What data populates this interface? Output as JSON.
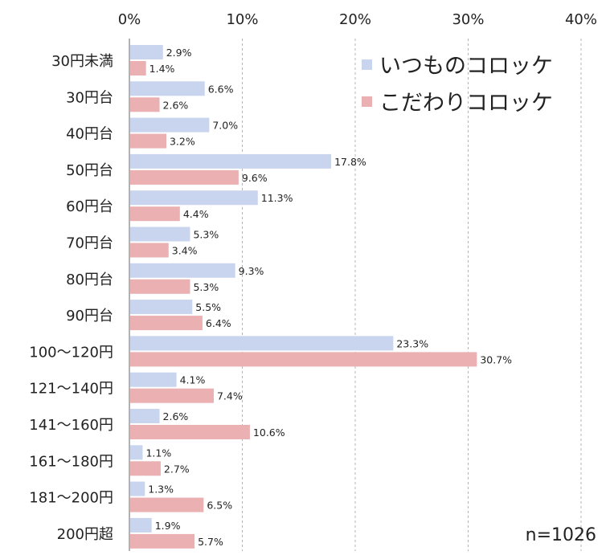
{
  "chart_data": {
    "type": "bar",
    "orientation": "horizontal",
    "categories": [
      "30円未満",
      "30円台",
      "40円台",
      "50円台",
      "60円台",
      "70円台",
      "80円台",
      "90円台",
      "100～120円",
      "121～140円",
      "141～160円",
      "161～180円",
      "181～200円",
      "200円超"
    ],
    "series": [
      {
        "name": "いつものコロッケ",
        "color": "#c9d5ee",
        "values": [
          2.9,
          6.6,
          7.0,
          17.8,
          11.3,
          5.3,
          9.3,
          5.5,
          23.3,
          4.1,
          2.6,
          1.1,
          1.3,
          1.9
        ],
        "labels": [
          "2.9%",
          "6.6%",
          "7.0%",
          "17.8%",
          "11.3%",
          "5.3%",
          "9.3%",
          "5.5%",
          "23.3%",
          "4.1%",
          "2.6%",
          "1.1%",
          "1.3%",
          "1.9%"
        ]
      },
      {
        "name": "こだわりコロッケ",
        "color": "#eab0b2",
        "values": [
          1.4,
          2.6,
          3.2,
          9.6,
          4.4,
          3.4,
          5.3,
          6.4,
          30.7,
          7.4,
          10.6,
          2.7,
          6.5,
          5.7
        ],
        "labels": [
          "1.4%",
          "2.6%",
          "3.2%",
          "9.6%",
          "4.4%",
          "3.4%",
          "5.3%",
          "6.4%",
          "30.7%",
          "7.4%",
          "10.6%",
          "2.7%",
          "6.5%",
          "5.7%"
        ]
      }
    ],
    "xlim": [
      0,
      40
    ],
    "x_ticks": [
      0,
      10,
      20,
      30,
      40
    ],
    "x_tick_labels": [
      "0%",
      "10%",
      "20%",
      "30%",
      "40%"
    ],
    "x_axis_position": "top",
    "grid": "vertical dashed",
    "legend_position": "top-right",
    "note": "n=1026"
  }
}
